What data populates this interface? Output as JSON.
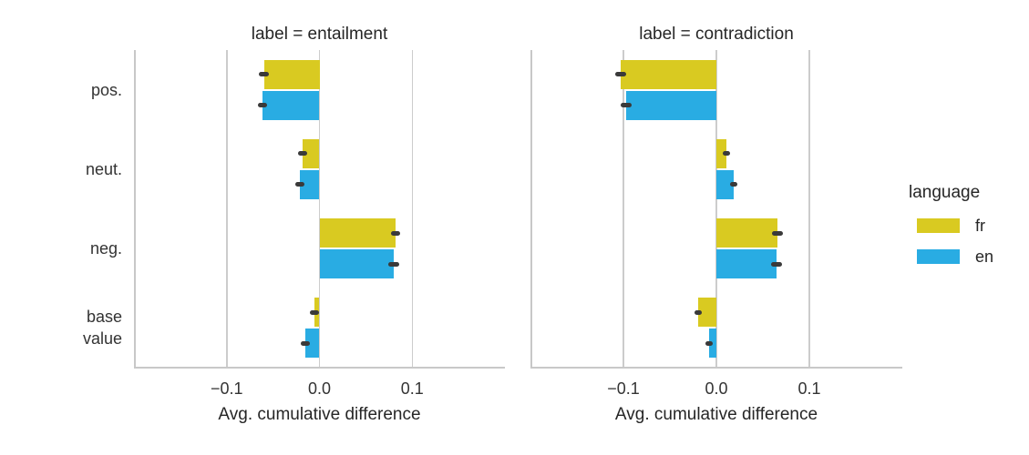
{
  "colors": {
    "fr": "#d9ca21",
    "en": "#29ace3",
    "grid": "#cccccc",
    "spine": "#c8c8c8",
    "errorbar": "#3a3a3a",
    "text": "#262626"
  },
  "legend": {
    "title": "language",
    "entries": [
      {
        "label": "fr",
        "color_key": "fr"
      },
      {
        "label": "en",
        "color_key": "en"
      }
    ],
    "position": "right"
  },
  "axes": {
    "xlabel": "Avg. cumulative difference",
    "xlim": [
      -0.2,
      0.2
    ],
    "xticks": [
      {
        "value": -0.1,
        "label": "−0.1"
      },
      {
        "value": 0.0,
        "label": "0.0"
      },
      {
        "value": 0.1,
        "label": "0.1"
      }
    ],
    "categories": [
      "pos.",
      "neut.",
      "neg.",
      "base value"
    ]
  },
  "chart_data": {
    "type": "bar",
    "orientation": "horizontal",
    "title": "",
    "xlabel": "Avg. cumulative difference",
    "ylabel": "",
    "xlim": [
      -0.2,
      0.2
    ],
    "grid": true,
    "legend_position": "right",
    "categories": [
      "pos.",
      "neut.",
      "neg.",
      "base value"
    ],
    "panels": [
      {
        "title": "label = entailment",
        "series": [
          {
            "name": "fr",
            "values": [
              -0.06,
              -0.018,
              0.082,
              -0.005
            ],
            "ci": [
              0.005,
              0.005,
              0.005,
              0.005
            ]
          },
          {
            "name": "en",
            "values": [
              -0.061,
              -0.021,
              0.08,
              -0.015
            ],
            "ci": [
              0.005,
              0.005,
              0.006,
              0.005
            ]
          }
        ]
      },
      {
        "title": "label = contradiction",
        "series": [
          {
            "name": "fr",
            "values": [
              -0.103,
              0.011,
              0.066,
              -0.02
            ],
            "ci": [
              0.006,
              0.004,
              0.006,
              0.004
            ]
          },
          {
            "name": "en",
            "values": [
              -0.097,
              0.019,
              0.065,
              -0.008
            ],
            "ci": [
              0.006,
              0.004,
              0.006,
              0.004
            ]
          }
        ]
      }
    ]
  }
}
